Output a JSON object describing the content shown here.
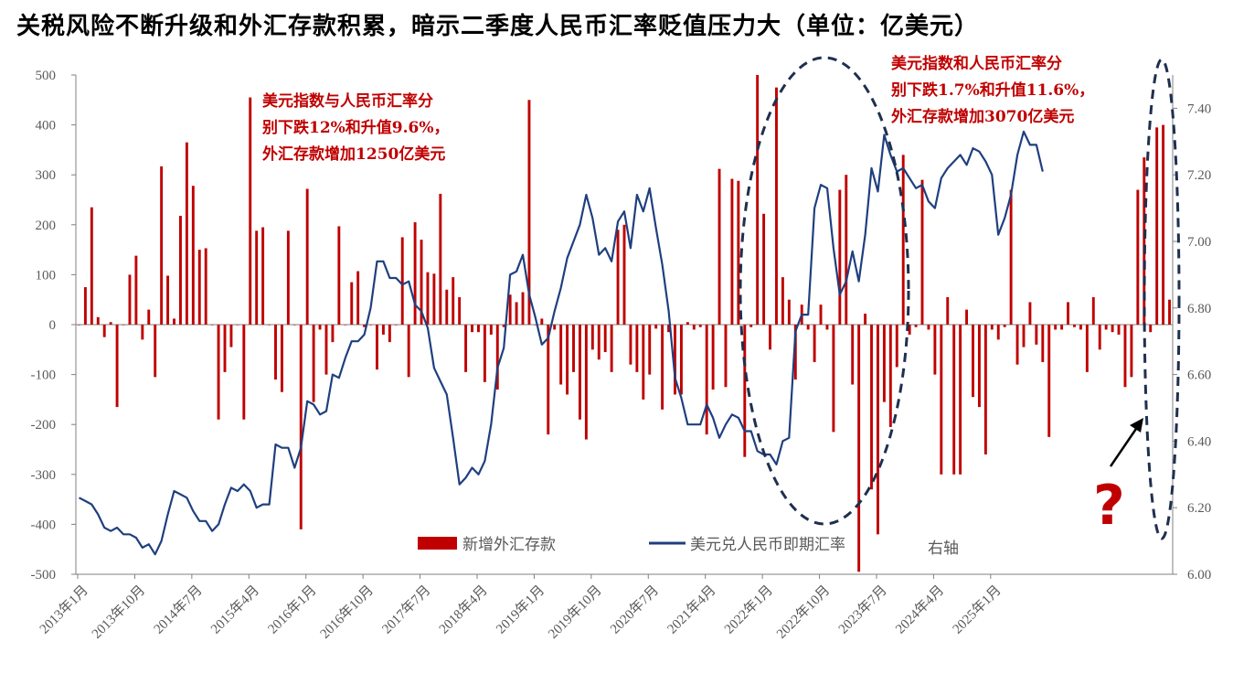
{
  "title": "关税风险不断升级和外汇存款积累，暗示二季度人民币汇率贬值压力大（单位：亿美元）",
  "annotations": {
    "note1": [
      "美元指数与人民币汇率分",
      "别下跌12%和升值9.6%，",
      "外汇存款增加1250亿美元"
    ],
    "note2": [
      "美元指数和人民币汇率分",
      "别下跌1.7%和升值11.6%，",
      "外汇存款增加3070亿美元"
    ],
    "question_mark": "?",
    "right_axis_note": "右轴"
  },
  "colors": {
    "bars": "#C00000",
    "line": "#1F3F7F",
    "ellipse": "#1F2F4F",
    "note": "#C00000",
    "axis": "#808080"
  },
  "chart_data": {
    "type": "bar+line",
    "x_tick_labels": [
      "2013年1月",
      "2013年10月",
      "2014年7月",
      "2015年4月",
      "2016年1月",
      "2016年10月",
      "2017年7月",
      "2018年4月",
      "2019年1月",
      "2019年10月",
      "2020年7月",
      "2021年4月",
      "2022年1月",
      "2022年10月",
      "2023年7月",
      "2024年4月",
      "2025年1月"
    ],
    "left_axis": {
      "ylim": [
        -500,
        500
      ],
      "ticks": [
        -500,
        -400,
        -300,
        -200,
        -100,
        0,
        100,
        200,
        300,
        400,
        500
      ]
    },
    "right_axis": {
      "ylim": [
        6.0,
        7.5
      ],
      "ticks": [
        "6.00",
        "6.20",
        "6.40",
        "6.60",
        "6.80",
        "7.00",
        "7.20",
        "7.40"
      ]
    },
    "series": [
      {
        "name": "新增外汇存款",
        "type": "bar",
        "axis": "left",
        "months_from": "2013-01",
        "values": [
          0,
          75,
          235,
          15,
          -25,
          5,
          -165,
          0,
          100,
          138,
          -30,
          30,
          -105,
          317,
          98,
          12,
          218,
          365,
          278,
          150,
          153,
          0,
          -190,
          -95,
          -45,
          0,
          -190,
          455,
          188,
          195,
          0,
          -110,
          -135,
          188,
          0,
          -410,
          272,
          -155,
          -10,
          -100,
          -35,
          197,
          0,
          85,
          107,
          -5,
          0,
          -90,
          -20,
          -35,
          0,
          175,
          -105,
          205,
          170,
          105,
          102,
          262,
          70,
          95,
          55,
          -95,
          -15,
          -15,
          -115,
          -20,
          -130,
          -5,
          60,
          45,
          65,
          450,
          0,
          12,
          -220,
          -10,
          -120,
          -140,
          -95,
          -190,
          -230,
          -50,
          -70,
          -55,
          -95,
          190,
          200,
          -80,
          -95,
          -150,
          -100,
          -8,
          -170,
          -15,
          -140,
          -140,
          5,
          -10,
          -5,
          -220,
          -130,
          312,
          -125,
          292,
          288,
          -265,
          -5,
          500,
          222,
          -50,
          475,
          95,
          50,
          -110,
          40,
          -10,
          -75,
          40,
          -10,
          -215,
          270,
          300,
          -120,
          -495,
          22,
          -330,
          -420,
          -155,
          -205,
          -85,
          340,
          -20,
          -5,
          290,
          -10,
          -100,
          -300,
          55,
          -300,
          -300,
          30,
          -145,
          -165,
          -260,
          -10,
          -30,
          -5,
          270,
          -80,
          -45,
          45,
          -40,
          -75,
          -225,
          -10,
          -10,
          45,
          -5,
          -10,
          -95,
          55,
          -50,
          -10,
          -15,
          -20,
          -125,
          -105,
          270,
          335,
          -15,
          395,
          400,
          50
        ]
      },
      {
        "name": "美元兑人民币即期汇率",
        "type": "line",
        "axis": "right",
        "months_from": "2013-01",
        "values": [
          6.23,
          6.22,
          6.21,
          6.18,
          6.14,
          6.13,
          6.14,
          6.12,
          6.12,
          6.11,
          6.08,
          6.09,
          6.06,
          6.1,
          6.18,
          6.25,
          6.24,
          6.23,
          6.19,
          6.16,
          6.16,
          6.13,
          6.15,
          6.21,
          6.26,
          6.25,
          6.27,
          6.25,
          6.2,
          6.21,
          6.21,
          6.39,
          6.38,
          6.38,
          6.32,
          6.38,
          6.52,
          6.51,
          6.48,
          6.49,
          6.6,
          6.59,
          6.65,
          6.7,
          6.7,
          6.72,
          6.8,
          6.94,
          6.94,
          6.89,
          6.89,
          6.87,
          6.88,
          6.81,
          6.79,
          6.74,
          6.62,
          6.58,
          6.54,
          6.41,
          6.27,
          6.29,
          6.32,
          6.3,
          6.34,
          6.45,
          6.62,
          6.68,
          6.9,
          6.91,
          6.96,
          6.84,
          6.77,
          6.69,
          6.71,
          6.79,
          6.86,
          6.95,
          7.0,
          7.05,
          7.14,
          7.07,
          6.96,
          6.98,
          6.94,
          7.06,
          7.09,
          6.98,
          7.14,
          7.09,
          7.16,
          7.04,
          6.93,
          6.79,
          6.59,
          6.53,
          6.45,
          6.45,
          6.45,
          6.51,
          6.47,
          6.41,
          6.45,
          6.48,
          6.47,
          6.43,
          6.43,
          6.37,
          6.36,
          6.36,
          6.33,
          6.4,
          6.41,
          6.73,
          6.78,
          6.78,
          7.1,
          7.17,
          7.16,
          6.98,
          6.84,
          6.88,
          6.97,
          6.88,
          7.02,
          7.22,
          7.15,
          7.32,
          7.26,
          7.21,
          7.22,
          7.19,
          7.16,
          7.17,
          7.12,
          7.1,
          7.19,
          7.22,
          7.24,
          7.26,
          7.23,
          7.28,
          7.27,
          7.24,
          7.2,
          7.02,
          7.07,
          7.14,
          7.26,
          7.33,
          7.29,
          7.29,
          7.21
        ]
      }
    ],
    "legend": {
      "placement": "bottom-center"
    }
  }
}
